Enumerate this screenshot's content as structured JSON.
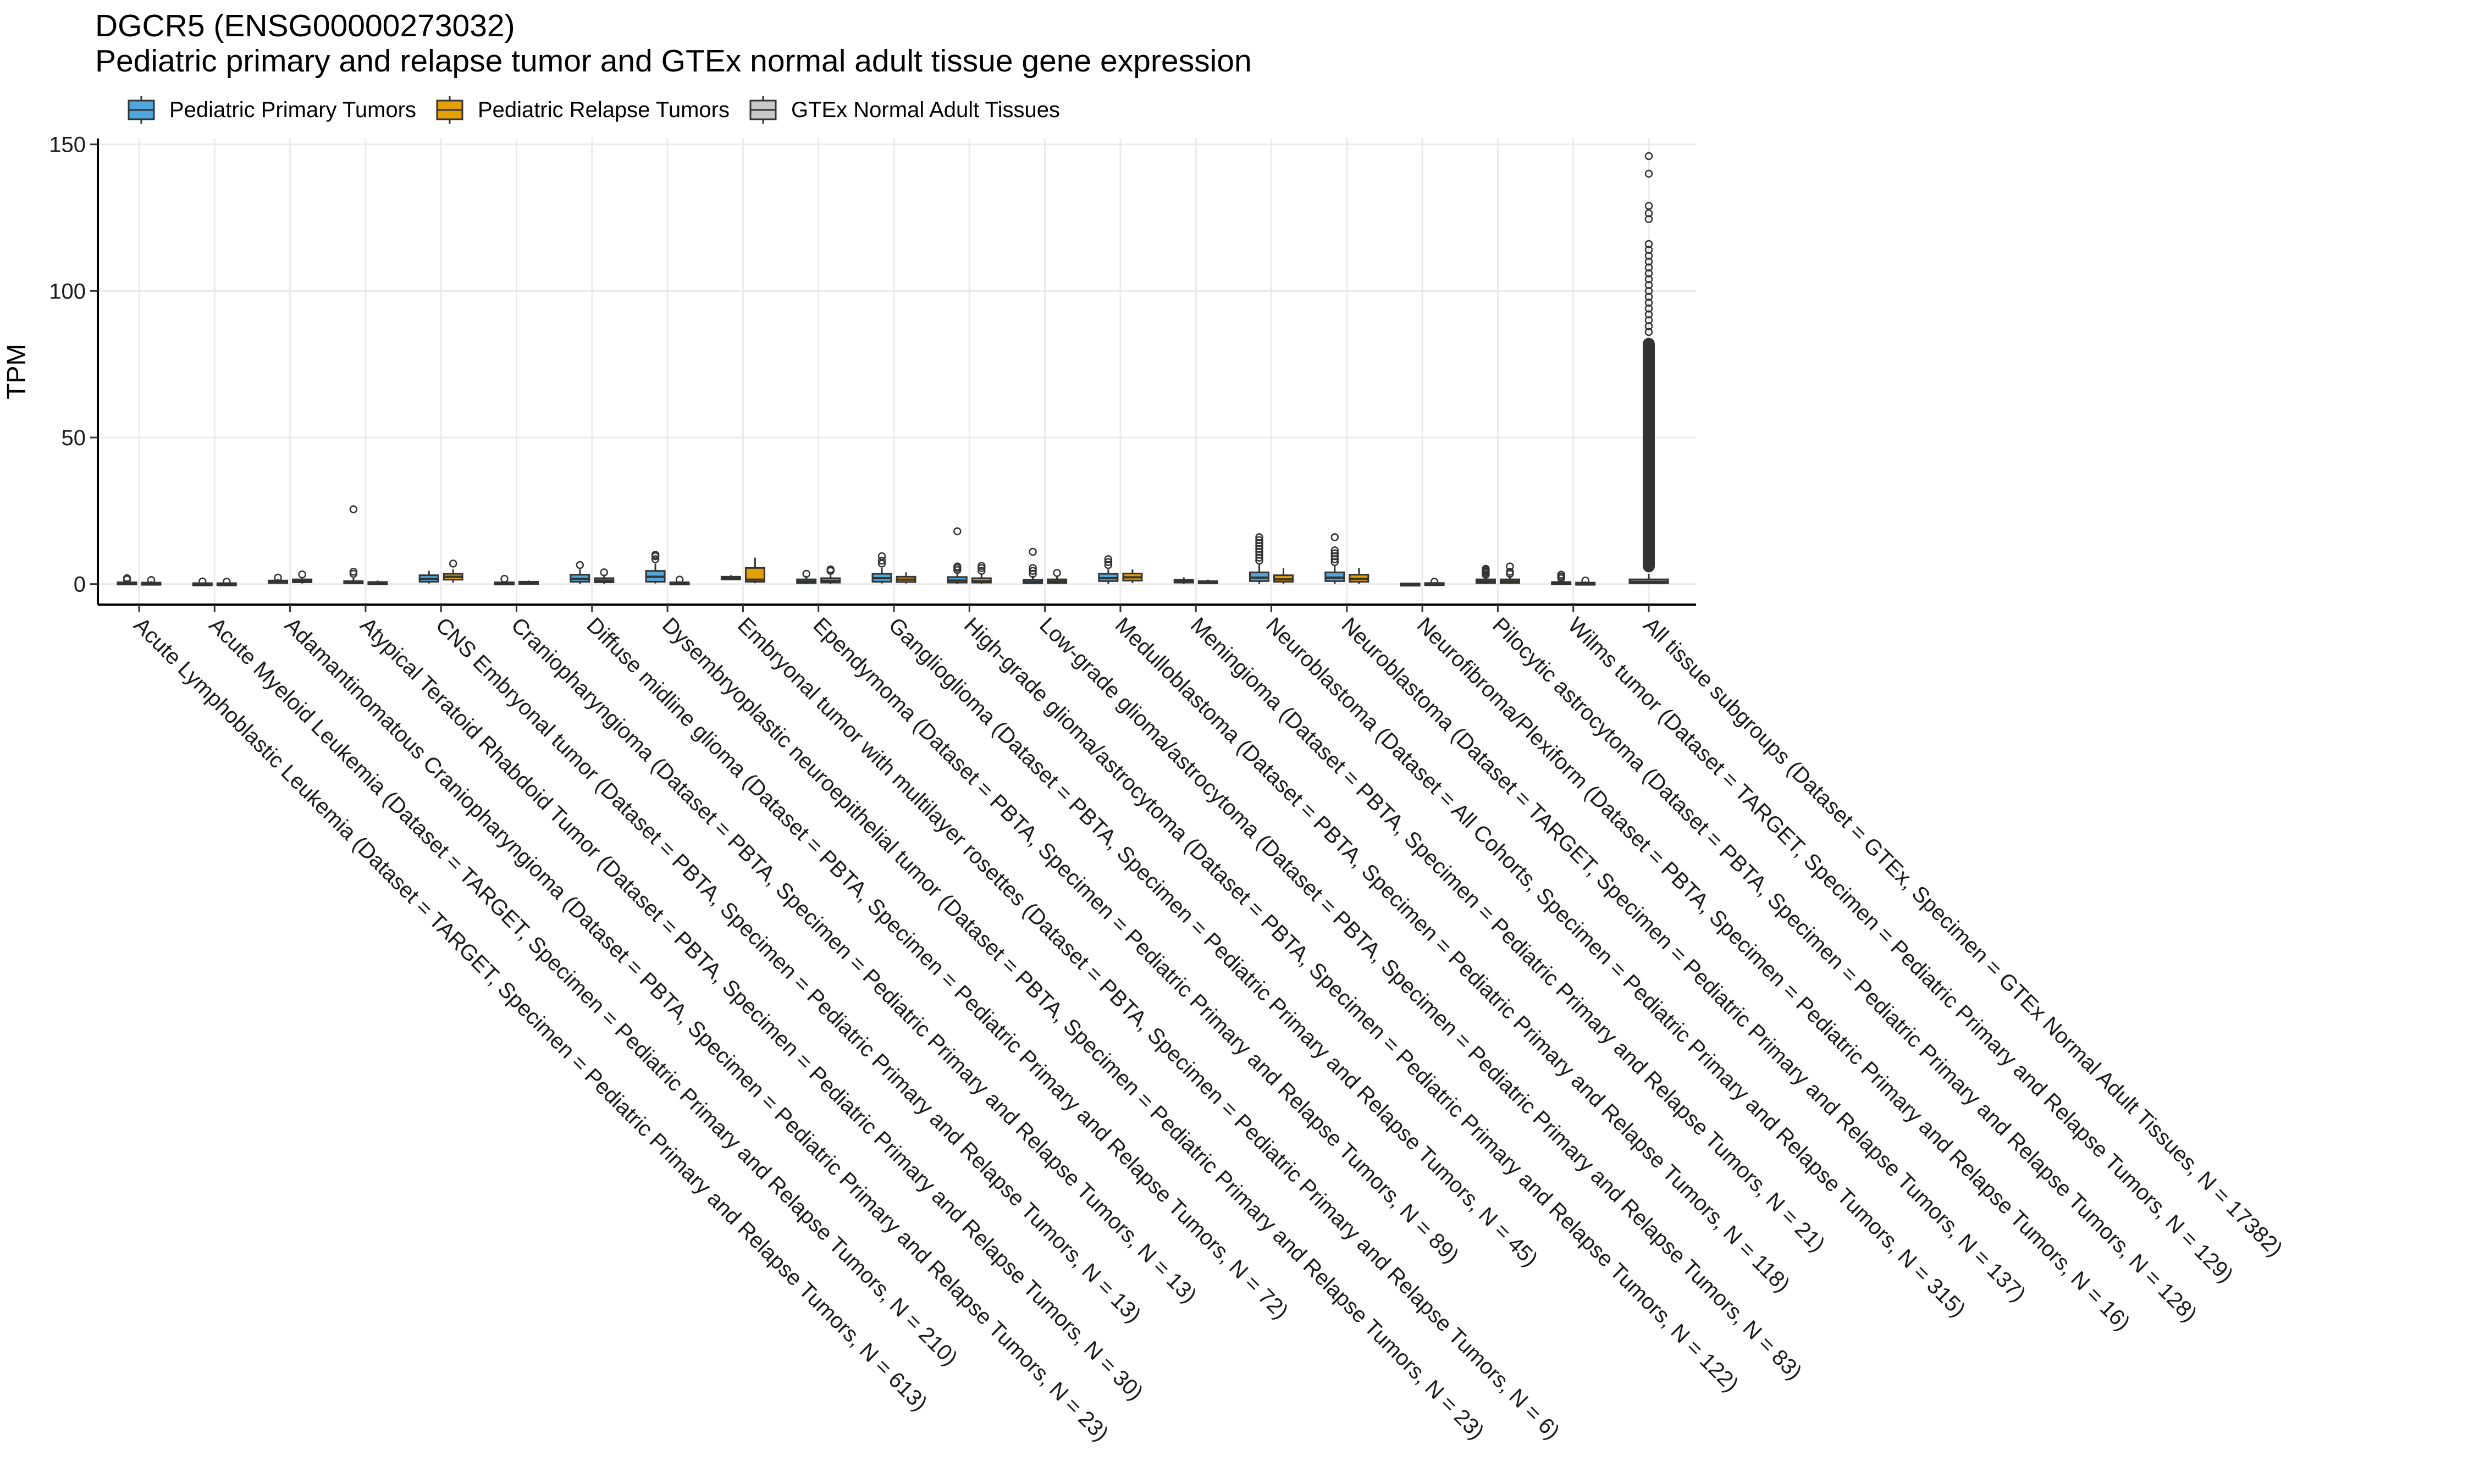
{
  "header": {
    "title": "DGCR5 (ENSG00000273032)",
    "subtitle": "Pediatric primary and relapse tumor and GTEx normal adult tissue gene expression"
  },
  "legend": {
    "items": [
      {
        "label": "Pediatric Primary Tumors",
        "color": "#4FA8DC"
      },
      {
        "label": "Pediatric Relapse Tumors",
        "color": "#E69F00"
      },
      {
        "label": "GTEx Normal Adult Tissues",
        "color": "#C8C8C8"
      }
    ]
  },
  "chart_data": {
    "type": "box",
    "ylabel": "TPM",
    "xlabel": "",
    "ylim": [
      -7,
      152
    ],
    "yticks": [
      0,
      50,
      100,
      150
    ],
    "grid": true,
    "legend_position": "top-left",
    "series_names": [
      "Pediatric Primary Tumors",
      "Pediatric Relapse Tumors",
      "GTEx Normal Adult Tissues"
    ],
    "categories": [
      "Acute Lymphoblastic Leukemia  (Dataset = TARGET, Specimen = Pediatric Primary and Relapse Tumors, N = 613)",
      "Acute Myeloid Leukemia  (Dataset = TARGET, Specimen = Pediatric Primary and Relapse Tumors, N = 210)",
      "Adamantinomatous Craniopharyngioma  (Dataset = PBTA, Specimen = Pediatric Primary and Relapse Tumors, N = 23)",
      "Atypical Teratoid Rhabdoid Tumor  (Dataset = PBTA, Specimen = Pediatric Primary and Relapse Tumors, N = 30)",
      "CNS Embryonal tumor  (Dataset = PBTA, Specimen = Pediatric Primary and Relapse Tumors, N = 13)",
      "Craniopharyngioma  (Dataset = PBTA, Specimen = Pediatric Primary and Relapse Tumors, N = 13)",
      "Diffuse midline glioma  (Dataset = PBTA, Specimen = Pediatric Primary and Relapse Tumors, N = 72)",
      "Dysembryoplastic neuroepithelial tumor  (Dataset = PBTA, Specimen = Pediatric Primary and Relapse Tumors, N = 23)",
      "Embryonal tumor with multilayer rosettes  (Dataset = PBTA, Specimen = Pediatric Primary and Relapse Tumors, N = 6)",
      "Ependymoma  (Dataset = PBTA, Specimen = Pediatric Primary and Relapse Tumors, N = 89)",
      "Ganglioglioma  (Dataset = PBTA, Specimen = Pediatric Primary and Relapse Tumors, N = 45)",
      "High-grade glioma/astrocytoma  (Dataset = PBTA, Specimen = Pediatric Primary and Relapse Tumors, N = 122)",
      "Low-grade glioma/astrocytoma  (Dataset = PBTA, Specimen = Pediatric Primary and Relapse Tumors, N = 83)",
      "Medulloblastoma  (Dataset = PBTA, Specimen = Pediatric Primary and Relapse Tumors, N = 118)",
      "Meningioma  (Dataset = PBTA, Specimen = Pediatric Primary and Relapse Tumors, N = 21)",
      "Neuroblastoma  (Dataset = All Cohorts, Specimen = Pediatric Primary and Relapse Tumors, N = 315)",
      "Neuroblastoma  (Dataset = TARGET, Specimen = Pediatric Primary and Relapse Tumors, N = 137)",
      "Neurofibroma/Plexiform  (Dataset = PBTA, Specimen = Pediatric Primary and Relapse Tumors, N = 16)",
      "Pilocytic astrocytoma  (Dataset = PBTA, Specimen = Pediatric Primary and Relapse Tumors, N = 128)",
      "Wilms tumor  (Dataset = TARGET, Specimen = Pediatric Primary and Relapse Tumors, N = 129)",
      "All tissue subgroups  (Dataset = GTEx, Specimen = GTEx Normal Adult Tissues, N = 17382)"
    ],
    "boxes": [
      {
        "category": 0,
        "series": 0,
        "q1": 0.1,
        "median": 0.3,
        "q3": 0.6,
        "whisker_low": 0,
        "whisker_high": 1.3,
        "outliers": [
          1.6,
          2.0
        ]
      },
      {
        "category": 0,
        "series": 1,
        "q1": 0.1,
        "median": 0.3,
        "q3": 0.5,
        "whisker_low": 0,
        "whisker_high": 1.0,
        "outliers": [
          1.4
        ]
      },
      {
        "category": 1,
        "series": 0,
        "q1": 0.05,
        "median": 0.15,
        "q3": 0.3,
        "whisker_low": 0,
        "whisker_high": 0.6,
        "outliers": [
          0.9
        ]
      },
      {
        "category": 1,
        "series": 1,
        "q1": 0.05,
        "median": 0.15,
        "q3": 0.3,
        "whisker_low": 0,
        "whisker_high": 0.6,
        "outliers": [
          0.8
        ]
      },
      {
        "category": 2,
        "series": 0,
        "q1": 0.4,
        "median": 0.8,
        "q3": 1.2,
        "whisker_low": 0.1,
        "whisker_high": 1.8,
        "outliers": [
          2.2
        ]
      },
      {
        "category": 2,
        "series": 1,
        "q1": 0.6,
        "median": 1.0,
        "q3": 1.6,
        "whisker_low": 0.2,
        "whisker_high": 2.4,
        "outliers": [
          3.3
        ]
      },
      {
        "category": 3,
        "series": 0,
        "q1": 0.3,
        "median": 0.6,
        "q3": 1.0,
        "whisker_low": 0,
        "whisker_high": 2.0,
        "outliers": [
          3.5,
          4.2,
          25.5
        ]
      },
      {
        "category": 3,
        "series": 1,
        "q1": 0.2,
        "median": 0.4,
        "q3": 0.7,
        "whisker_low": 0,
        "whisker_high": 1.2,
        "outliers": []
      },
      {
        "category": 4,
        "series": 0,
        "q1": 0.8,
        "median": 1.8,
        "q3": 3.0,
        "whisker_low": 0.2,
        "whisker_high": 4.5,
        "outliers": []
      },
      {
        "category": 4,
        "series": 1,
        "q1": 1.5,
        "median": 2.5,
        "q3": 3.5,
        "whisker_low": 0.5,
        "whisker_high": 5.0,
        "outliers": [
          7.0
        ]
      },
      {
        "category": 5,
        "series": 0,
        "q1": 0.1,
        "median": 0.3,
        "q3": 0.6,
        "whisker_low": 0,
        "whisker_high": 1.0,
        "outliers": [
          1.8
        ]
      },
      {
        "category": 5,
        "series": 1,
        "q1": 0.2,
        "median": 0.4,
        "q3": 0.8,
        "whisker_low": 0,
        "whisker_high": 1.2,
        "outliers": []
      },
      {
        "category": 6,
        "series": 0,
        "q1": 0.8,
        "median": 1.8,
        "q3": 3.2,
        "whisker_low": 0.1,
        "whisker_high": 5.0,
        "outliers": [
          6.5
        ]
      },
      {
        "category": 6,
        "series": 1,
        "q1": 0.6,
        "median": 1.2,
        "q3": 2.0,
        "whisker_low": 0.1,
        "whisker_high": 3.2,
        "outliers": [
          4.0
        ]
      },
      {
        "category": 7,
        "series": 0,
        "q1": 0.8,
        "median": 2.5,
        "q3": 4.5,
        "whisker_low": 0.2,
        "whisker_high": 7.0,
        "outliers": [
          8.5,
          9.5,
          10.0
        ]
      },
      {
        "category": 7,
        "series": 1,
        "q1": 0.1,
        "median": 0.3,
        "q3": 0.6,
        "whisker_low": 0,
        "whisker_high": 1.0,
        "outliers": [
          1.5
        ]
      },
      {
        "category": 8,
        "series": 0,
        "q1": 1.6,
        "median": 2.0,
        "q3": 2.5,
        "whisker_low": 1.3,
        "whisker_high": 3.0,
        "outliers": []
      },
      {
        "category": 8,
        "series": 1,
        "q1": 0.8,
        "median": 1.5,
        "q3": 5.5,
        "whisker_low": 0.3,
        "whisker_high": 9.0,
        "outliers": []
      },
      {
        "category": 9,
        "series": 0,
        "q1": 0.4,
        "median": 0.9,
        "q3": 1.6,
        "whisker_low": 0,
        "whisker_high": 2.8,
        "outliers": [
          3.5
        ]
      },
      {
        "category": 9,
        "series": 1,
        "q1": 0.5,
        "median": 1.1,
        "q3": 2.0,
        "whisker_low": 0,
        "whisker_high": 3.5,
        "outliers": [
          4.5,
          5.0
        ]
      },
      {
        "category": 10,
        "series": 0,
        "q1": 0.8,
        "median": 2.0,
        "q3": 3.5,
        "whisker_low": 0.2,
        "whisker_high": 5.5,
        "outliers": [
          7.0,
          8.0,
          9.5
        ]
      },
      {
        "category": 10,
        "series": 1,
        "q1": 0.7,
        "median": 1.5,
        "q3": 2.5,
        "whisker_low": 0.2,
        "whisker_high": 4.0,
        "outliers": []
      },
      {
        "category": 11,
        "series": 0,
        "q1": 0.5,
        "median": 1.2,
        "q3": 2.4,
        "whisker_low": 0,
        "whisker_high": 4.0,
        "outliers": [
          4.8,
          5.5,
          6.0,
          18.0
        ]
      },
      {
        "category": 11,
        "series": 1,
        "q1": 0.5,
        "median": 1.0,
        "q3": 2.0,
        "whisker_low": 0,
        "whisker_high": 3.5,
        "outliers": [
          4.5,
          5.5,
          6.2
        ]
      },
      {
        "category": 12,
        "series": 0,
        "q1": 0.3,
        "median": 0.8,
        "q3": 1.5,
        "whisker_low": 0,
        "whisker_high": 2.8,
        "outliers": [
          3.5,
          4.5,
          5.5,
          11.0
        ]
      },
      {
        "category": 12,
        "series": 1,
        "q1": 0.4,
        "median": 0.9,
        "q3": 1.6,
        "whisker_low": 0,
        "whisker_high": 2.6,
        "outliers": [
          3.8
        ]
      },
      {
        "category": 13,
        "series": 0,
        "q1": 1.0,
        "median": 2.0,
        "q3": 3.5,
        "whisker_low": 0.1,
        "whisker_high": 5.0,
        "outliers": [
          6.5,
          7.5,
          8.5
        ]
      },
      {
        "category": 13,
        "series": 1,
        "q1": 1.2,
        "median": 2.3,
        "q3": 3.6,
        "whisker_low": 0.3,
        "whisker_high": 5.0,
        "outliers": []
      },
      {
        "category": 14,
        "series": 0,
        "q1": 0.5,
        "median": 1.0,
        "q3": 1.5,
        "whisker_low": 0.1,
        "whisker_high": 2.3,
        "outliers": []
      },
      {
        "category": 14,
        "series": 1,
        "q1": 0.3,
        "median": 0.6,
        "q3": 1.0,
        "whisker_low": 0,
        "whisker_high": 1.5,
        "outliers": []
      },
      {
        "category": 15,
        "series": 0,
        "q1": 1.0,
        "median": 2.2,
        "q3": 4.0,
        "whisker_low": 0.1,
        "whisker_high": 7.0,
        "outliers": [
          8.0,
          9.0,
          10.0,
          11.0,
          12.0,
          13.0,
          14.0,
          15.0,
          16.0
        ]
      },
      {
        "category": 15,
        "series": 1,
        "q1": 0.8,
        "median": 1.6,
        "q3": 3.0,
        "whisker_low": 0.1,
        "whisker_high": 5.5,
        "outliers": []
      },
      {
        "category": 16,
        "series": 0,
        "q1": 1.0,
        "median": 2.2,
        "q3": 4.0,
        "whisker_low": 0.1,
        "whisker_high": 6.5,
        "outliers": [
          7.5,
          8.5,
          9.5,
          10.5,
          11.5,
          16.0
        ]
      },
      {
        "category": 16,
        "series": 1,
        "q1": 0.8,
        "median": 1.8,
        "q3": 3.2,
        "whisker_low": 0.1,
        "whisker_high": 5.5,
        "outliers": []
      },
      {
        "category": 17,
        "series": 0,
        "q1": 0.05,
        "median": 0.1,
        "q3": 0.2,
        "whisker_low": 0,
        "whisker_high": 0.4,
        "outliers": []
      },
      {
        "category": 17,
        "series": 1,
        "q1": 0.1,
        "median": 0.2,
        "q3": 0.35,
        "whisker_low": 0,
        "whisker_high": 0.5,
        "outliers": [
          0.8
        ]
      },
      {
        "category": 18,
        "series": 0,
        "q1": 0.4,
        "median": 0.9,
        "q3": 1.6,
        "whisker_low": 0,
        "whisker_high": 2.8,
        "outliers": [
          3.2,
          3.8,
          4.3,
          4.8,
          5.2
        ]
      },
      {
        "category": 18,
        "series": 1,
        "q1": 0.4,
        "median": 0.9,
        "q3": 1.6,
        "whisker_low": 0,
        "whisker_high": 2.8,
        "outliers": [
          3.5,
          4.2,
          6.0
        ]
      },
      {
        "category": 19,
        "series": 0,
        "q1": 0.1,
        "median": 0.3,
        "q3": 0.7,
        "whisker_low": 0,
        "whisker_high": 1.4,
        "outliers": [
          2.0,
          2.6,
          3.2
        ]
      },
      {
        "category": 19,
        "series": 1,
        "q1": 0.1,
        "median": 0.2,
        "q3": 0.5,
        "whisker_low": 0,
        "whisker_high": 0.9,
        "outliers": [
          1.2
        ]
      },
      {
        "category": 20,
        "series": 2,
        "q1": 0.3,
        "median": 0.8,
        "q3": 1.6,
        "whisker_low": 0,
        "whisker_high": 3.5,
        "outliers": [
          146.0,
          140.0,
          129.0,
          126.5,
          124.5,
          116.0,
          114.0,
          112.0,
          110.0,
          108.0,
          106.0,
          104.0,
          102.0,
          100.0,
          98.0,
          96.0,
          94.0,
          92.0,
          90.0,
          88.0,
          86.0
        ]
      },
      {
        "category": 20,
        "series": 2,
        "q1": 0.3,
        "median": 0.8,
        "q3": 1.6,
        "whisker_low": 0,
        "whisker_high": 3.5,
        "dense_outliers_range": [
          4.0,
          84.0
        ]
      }
    ]
  }
}
